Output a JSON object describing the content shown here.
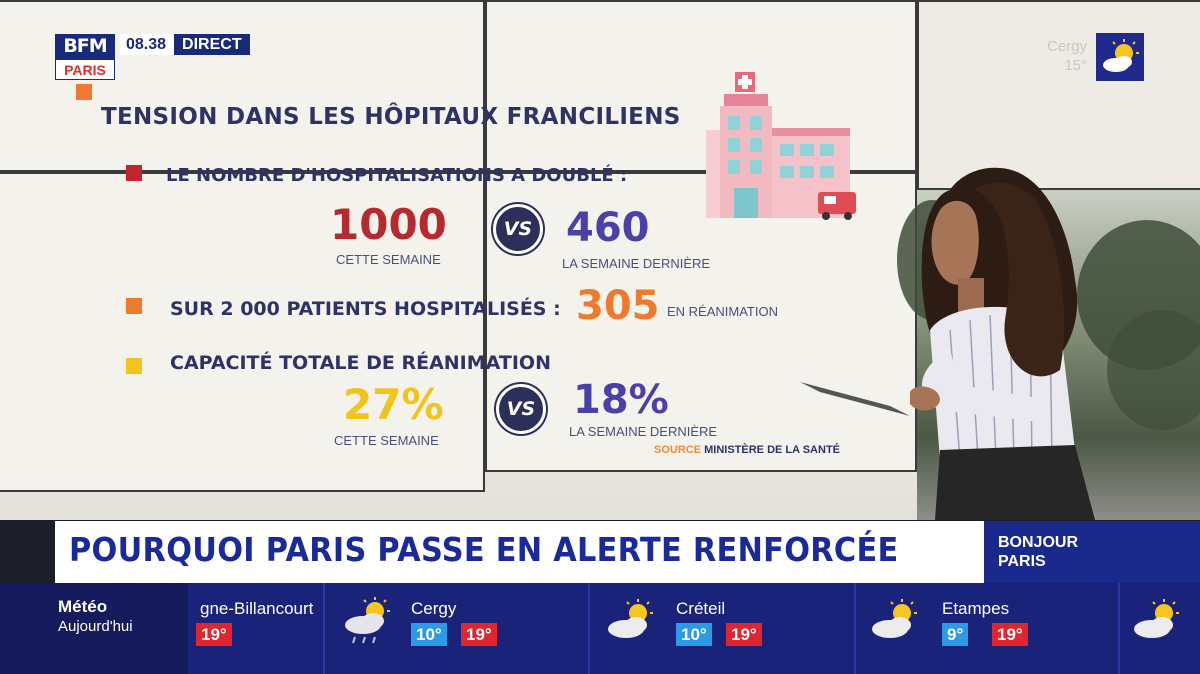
{
  "broadcast": {
    "logo_top": "BFM",
    "logo_bottom": "PARIS",
    "time": "08.38",
    "live_label": "DIRECT",
    "top_weather": {
      "city": "Cergy",
      "temp": "15°",
      "icon": "sun-cloud-icon"
    }
  },
  "infographic": {
    "title": "TENSION DANS LES HÔPITAUX FRANCILIENS",
    "section1": {
      "heading": "LE NOMBRE D'HOSPITALISATIONS A DOUBLÉ :",
      "bullet_color": "#c0272d",
      "this_week_value": "1000",
      "this_week_label": "CETTE SEMAINE",
      "vs_label": "VS",
      "last_week_value": "460",
      "last_week_label": "LA SEMAINE DERNIÈRE"
    },
    "section2": {
      "heading": "SUR 2 000 PATIENTS HOSPITALISÉS :",
      "bullet_color": "#ef7a2e",
      "value": "305",
      "value_label": "EN RÉANIMATION"
    },
    "section3": {
      "heading": "CAPACITÉ TOTALE DE RÉANIMATION",
      "bullet_color": "#f2c51c",
      "this_week_value": "27%",
      "this_week_label": "CETTE SEMAINE",
      "vs_label": "VS",
      "last_week_value": "18%",
      "last_week_label": "LA SEMAINE DERNIÈRE"
    },
    "source_key": "SOURCE",
    "source_value": "MINISTÈRE DE LA SANTÉ",
    "colors": {
      "dark_red": "#b5292f",
      "navy": "#2e3265",
      "purple": "#4b3fa8",
      "orange": "#ef7a2e",
      "yellow": "#f0c419"
    }
  },
  "headline": {
    "text": "POURQUOI PARIS PASSE EN ALERTE RENFORCÉE",
    "show_tag": "BONJOUR PARIS"
  },
  "weather_ticker": {
    "label_title": "Météo",
    "label_sub": "Aujourd'hui",
    "items": [
      {
        "city": "gne-Billancourt",
        "min": "",
        "max": "19°",
        "icon": "sun-cloud-icon"
      },
      {
        "city": "Cergy",
        "min": "10°",
        "max": "19°",
        "icon": "sun-cloud-rain-icon"
      },
      {
        "city": "Créteil",
        "min": "10°",
        "max": "19°",
        "icon": "sun-cloud-icon"
      },
      {
        "city": "Etampes",
        "min": "9°",
        "max": "19°",
        "icon": "sun-cloud-icon"
      }
    ],
    "trailing_icon": "sun-cloud-icon"
  }
}
